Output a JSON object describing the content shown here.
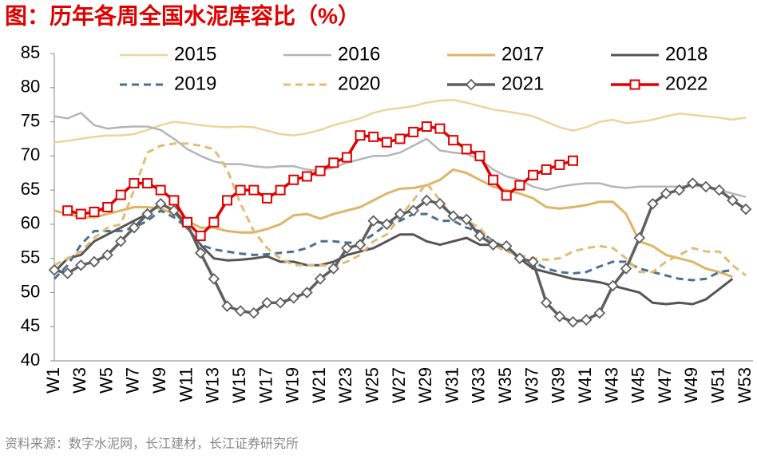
{
  "chart_data": {
    "type": "line",
    "title": "图：历年各周全国水泥库容比（%）",
    "source": "资料来源：数字水泥网，长江建材，长江证券研究所",
    "categories": [
      "W1",
      null,
      "W3",
      null,
      "W5",
      null,
      "W7",
      null,
      "W9",
      null,
      "W11",
      null,
      "W13",
      null,
      "W15",
      null,
      "W17",
      null,
      "W19",
      null,
      "W21",
      null,
      "W23",
      null,
      "W25",
      null,
      "W27",
      null,
      "W29",
      null,
      "W31",
      null,
      "W33",
      null,
      "W35",
      null,
      "W37",
      null,
      "W39",
      null,
      "W41",
      null,
      "W43",
      null,
      "W45",
      null,
      "W47",
      null,
      "W49",
      null,
      "W51",
      null,
      "W53"
    ],
    "ylim": [
      40,
      85
    ],
    "yticks": [
      40,
      45,
      50,
      55,
      60,
      65,
      70,
      75,
      80,
      85
    ],
    "grid": false,
    "series": [
      {
        "name": "2015",
        "color": "#eed39a",
        "width": 2.5,
        "style": "solid",
        "marker": "none",
        "values": [
          72,
          72.2,
          72.5,
          72.8,
          73,
          73,
          73.2,
          73.8,
          74.5,
          75,
          74.8,
          74.5,
          74.3,
          74.2,
          74.3,
          74.2,
          73.7,
          73.2,
          73,
          73.3,
          73.8,
          74.5,
          75,
          75.5,
          76.3,
          76.8,
          77,
          77.3,
          77.8,
          78.1,
          78.2,
          77.8,
          77.3,
          76.8,
          76.5,
          76.2,
          75.8,
          75,
          74.2,
          73.7,
          74.2,
          75,
          75.3,
          74.8,
          75,
          75.3,
          75.8,
          76.2,
          76,
          75.8,
          75.6,
          75.3,
          75.6
        ]
      },
      {
        "name": "2016",
        "color": "#b5b5b5",
        "width": 2.5,
        "style": "solid",
        "marker": "none",
        "values": [
          75.8,
          75.5,
          76.3,
          74.5,
          74,
          74.2,
          74.3,
          74.3,
          73.8,
          72.5,
          71,
          70,
          69.2,
          68.8,
          68.8,
          68.5,
          68.3,
          68.5,
          68.5,
          68,
          67.8,
          68.3,
          69,
          69.5,
          70,
          70,
          70.5,
          71.5,
          72.5,
          70.8,
          70.5,
          70.3,
          69.5,
          68,
          67,
          66.5,
          65.5,
          65,
          65.5,
          65.8,
          66,
          66,
          65.5,
          65.3,
          65.5,
          65.5,
          65.5,
          65.5,
          65.6,
          65.5,
          65,
          64.5,
          64
        ]
      },
      {
        "name": "2017",
        "color": "#deb467",
        "width": 3,
        "style": "solid",
        "marker": "none",
        "values": [
          62,
          61.5,
          61,
          61,
          61.5,
          62,
          62.5,
          62.5,
          62.3,
          61.5,
          60.5,
          59.5,
          59.5,
          59,
          58.8,
          58.8,
          59.3,
          60,
          61.3,
          61.5,
          60.8,
          61.5,
          62,
          62.5,
          63.5,
          64.5,
          65.2,
          65.3,
          65.7,
          66.5,
          68,
          67.5,
          66.5,
          65.5,
          65,
          64.5,
          63.8,
          62.5,
          62.3,
          62.5,
          62.8,
          63.3,
          63.3,
          61.5,
          57.5,
          56.8,
          55.5,
          55,
          54.5,
          53.5,
          53,
          52.3,
          null
        ]
      },
      {
        "name": "2018",
        "color": "#555555",
        "width": 3,
        "style": "solid",
        "marker": "none",
        "values": [
          53,
          55,
          55.5,
          57.5,
          58.5,
          59.5,
          60.5,
          61.5,
          63,
          62,
          59.5,
          57,
          55,
          54.7,
          54.8,
          55,
          55.3,
          54.5,
          54.5,
          54,
          54,
          54.5,
          55.5,
          56,
          56.5,
          57.5,
          58.5,
          58.5,
          57.5,
          57,
          57.5,
          58,
          57,
          57,
          56.5,
          55,
          53.5,
          53,
          52.5,
          52,
          51.8,
          51.5,
          51,
          50.5,
          50,
          48.5,
          48.3,
          48.5,
          48.3,
          49,
          50.5,
          52,
          null
        ]
      },
      {
        "name": "2019",
        "color": "#4a7193",
        "width": 3,
        "style": "dashed",
        "marker": "none",
        "values": [
          52,
          54,
          57,
          59,
          59,
          59,
          59.5,
          60.5,
          62,
          61,
          59.5,
          57,
          56.3,
          56,
          55.7,
          55.5,
          55.6,
          55.8,
          56,
          56.5,
          57.5,
          57.5,
          57.3,
          57.3,
          58.5,
          60,
          60.5,
          61.5,
          61.5,
          60.5,
          60.5,
          59.5,
          59,
          57.5,
          56.5,
          55,
          54.5,
          53.5,
          53,
          52.8,
          53,
          53.8,
          54.5,
          54.5,
          53.5,
          53,
          52.5,
          52,
          51.8,
          52,
          53,
          53.3,
          null
        ]
      },
      {
        "name": "2020",
        "color": "#e2bb74",
        "width": 3,
        "style": "dashed",
        "marker": "none",
        "values": [
          54,
          55,
          56,
          58,
          59.5,
          60,
          65,
          70.5,
          71.5,
          71.8,
          71.8,
          71.5,
          71,
          68,
          63,
          59,
          56.5,
          55,
          54,
          54,
          54,
          53.8,
          54.5,
          55.5,
          57.5,
          58.5,
          61,
          63.5,
          66,
          63.5,
          61,
          60.5,
          59.5,
          57,
          56,
          55.5,
          55,
          54.8,
          55,
          56,
          56.5,
          56.8,
          56.5,
          55,
          53,
          53,
          54.5,
          55.5,
          56.5,
          56,
          56,
          54,
          52.5
        ]
      },
      {
        "name": "2021",
        "color": "#5f5f5f",
        "width": 3.5,
        "style": "solid",
        "marker": "diamond",
        "values": [
          53.3,
          52.8,
          54,
          54.5,
          55.5,
          57.5,
          59.5,
          61.5,
          63,
          62,
          60,
          55.8,
          52,
          48,
          47.3,
          47,
          48.5,
          48.5,
          49.2,
          50,
          52,
          53.5,
          56.5,
          57,
          60.5,
          60,
          61.5,
          62,
          63.5,
          63,
          61.2,
          60.7,
          58.3,
          57,
          56.8,
          55,
          54.5,
          48.5,
          46.5,
          45.7,
          46,
          47,
          51,
          53.5,
          58,
          63,
          64.5,
          65,
          66,
          65.5,
          65,
          63.5,
          62.2
        ]
      },
      {
        "name": "2022",
        "color": "#e00000",
        "width": 3.5,
        "style": "solid",
        "marker": "square",
        "values": [
          null,
          62,
          61.5,
          61.8,
          62.5,
          64.3,
          66,
          66,
          65,
          63.5,
          60.3,
          58.3,
          60.3,
          63.5,
          65,
          65,
          63.8,
          65,
          66.5,
          67,
          67.8,
          69,
          69.8,
          73,
          72.8,
          72,
          72.5,
          73.5,
          74.3,
          74,
          72.3,
          71,
          70,
          66.5,
          64.2,
          65.7,
          67.2,
          68,
          68.7,
          69.3,
          null,
          null,
          null,
          null,
          null,
          null,
          null,
          null,
          null,
          null,
          null,
          null,
          null
        ]
      }
    ]
  }
}
